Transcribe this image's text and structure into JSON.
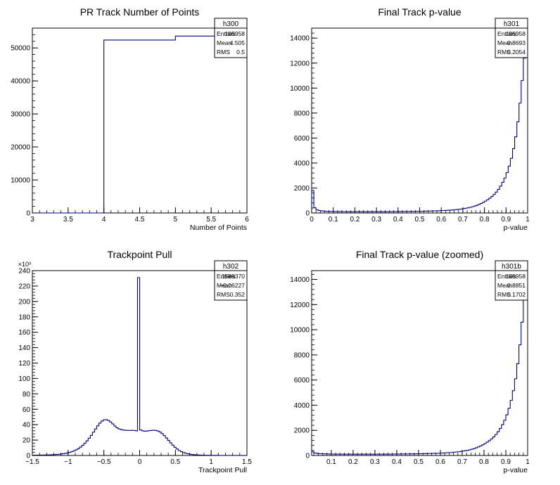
{
  "colors": {
    "hist_line": "#00008b",
    "axis": "#000000",
    "background": "#ffffff"
  },
  "chart_data": [
    {
      "id": "h300",
      "type": "histogram",
      "title": "PR Track Number of Points",
      "xlabel": "Number of Points",
      "ylabel": "",
      "xlim": [
        3,
        6
      ],
      "ylim": [
        0,
        56000
      ],
      "x_ticks": [
        3,
        3.5,
        4,
        4.5,
        5,
        5.5,
        6
      ],
      "x_tick_labels": [
        "3",
        "3.5",
        "4",
        "4.5",
        "5",
        "5.5",
        "6"
      ],
      "y_ticks": [
        0,
        10000,
        20000,
        30000,
        40000,
        50000
      ],
      "y_tick_labels": [
        "0",
        "10000",
        "20000",
        "30000",
        "40000",
        "50000"
      ],
      "y_exponent": "",
      "bin_edges": [
        3,
        4,
        5,
        6
      ],
      "values": [
        0,
        52400,
        53600
      ],
      "stats": {
        "name": "h300",
        "rows": [
          [
            "Entries",
            "105958"
          ],
          [
            "Mean",
            "4.505"
          ],
          [
            "RMS",
            "0.5"
          ]
        ]
      }
    },
    {
      "id": "h301",
      "type": "histogram",
      "title": "Final Track p-value",
      "xlabel": "p-value",
      "ylabel": "",
      "xlim": [
        0,
        1
      ],
      "ylim": [
        0,
        14800
      ],
      "x_ticks": [
        0,
        0.1,
        0.2,
        0.3,
        0.4,
        0.5,
        0.6,
        0.7,
        0.8,
        0.9,
        1
      ],
      "x_tick_labels": [
        "0",
        "0.1",
        "0.2",
        "0.3",
        "0.4",
        "0.5",
        "0.6",
        "0.7",
        "0.8",
        "0.9",
        "1"
      ],
      "y_ticks": [
        0,
        2000,
        4000,
        6000,
        8000,
        10000,
        12000,
        14000
      ],
      "y_tick_labels": [
        "0",
        "2000",
        "4000",
        "6000",
        "8000",
        "10000",
        "12000",
        "14000"
      ],
      "y_exponent": "",
      "x_start": 0,
      "bin_width": 0.01,
      "values": [
        1800,
        420,
        260,
        200,
        170,
        150,
        140,
        130,
        125,
        120,
        115,
        112,
        110,
        108,
        106,
        105,
        104,
        103,
        102,
        101,
        100,
        100,
        100,
        100,
        100,
        100,
        100,
        100,
        100,
        100,
        100,
        100,
        100,
        102,
        104,
        106,
        108,
        110,
        112,
        114,
        116,
        118,
        120,
        122,
        124,
        126,
        128,
        130,
        132,
        134,
        136,
        140,
        145,
        150,
        155,
        160,
        165,
        170,
        175,
        180,
        190,
        200,
        210,
        220,
        230,
        245,
        260,
        280,
        300,
        320,
        350,
        380,
        410,
        450,
        500,
        550,
        610,
        680,
        760,
        850,
        950,
        1060,
        1180,
        1320,
        1480,
        1670,
        1890,
        2150,
        2450,
        2800,
        3230,
        3750,
        4380,
        5150,
        6100,
        7300,
        8800,
        10600,
        12400,
        14200
      ],
      "stats": {
        "name": "h301",
        "rows": [
          [
            "Entries",
            "105958"
          ],
          [
            "Mean",
            "0.8693"
          ],
          [
            "RMS",
            "0.2054"
          ]
        ]
      }
    },
    {
      "id": "h302",
      "type": "histogram",
      "title": "Trackpoint Pull",
      "xlabel": "Trackpoint Pull",
      "ylabel": "",
      "xlim": [
        -1.5,
        1.5
      ],
      "ylim": [
        0,
        240
      ],
      "x_ticks": [
        -1.5,
        -1,
        -0.5,
        0,
        0.5,
        1,
        1.5
      ],
      "x_tick_labels": [
        "−1.5",
        "−1",
        "−0.5",
        "0",
        "0.5",
        "1",
        "1.5"
      ],
      "y_ticks": [
        0,
        20,
        40,
        60,
        80,
        100,
        120,
        140,
        160,
        180,
        200,
        220,
        240
      ],
      "y_tick_labels": [
        "0",
        "20",
        "40",
        "60",
        "80",
        "100",
        "120",
        "140",
        "160",
        "180",
        "200",
        "220",
        "240"
      ],
      "y_exponent": "×10³",
      "x_start": -1.5,
      "bin_width": 0.03,
      "values": [
        0.3,
        0.4,
        0.4,
        0.5,
        0.5,
        0.6,
        0.7,
        0.8,
        0.9,
        1.0,
        1.2,
        1.4,
        1.6,
        1.9,
        2.3,
        2.8,
        3.4,
        4.1,
        5.0,
        6.1,
        7.4,
        9.0,
        10.9,
        13.2,
        15.9,
        19.0,
        22.4,
        26.2,
        30.3,
        34.5,
        38.5,
        42.0,
        44.7,
        46.3,
        46.5,
        45.5,
        43.5,
        41.0,
        38.3,
        36.0,
        34.5,
        33.6,
        33.0,
        32.7,
        32.6,
        32.6,
        32.7,
        32.5,
        32.0,
        231.0,
        33.0,
        32.0,
        31.5,
        31.8,
        32.2,
        32.6,
        32.8,
        32.6,
        31.9,
        30.5,
        28.5,
        25.8,
        22.8,
        19.6,
        16.4,
        13.4,
        10.7,
        8.4,
        6.5,
        5.0,
        3.8,
        2.9,
        2.2,
        1.7,
        1.3,
        1.0,
        0.8,
        0.6,
        0.5,
        0.4,
        0.35,
        0.3,
        0.25,
        0.2,
        0.2,
        0.15,
        0.15,
        0.1,
        0.1,
        0.1,
        0.1,
        0.1,
        0.1,
        0.1,
        0.1,
        0.1,
        0.1,
        0.1,
        0.1,
        0.1
      ],
      "stats": {
        "name": "h302",
        "rows": [
          [
            "Entries",
            "1589370"
          ],
          [
            "Mean",
            "−0.06227"
          ],
          [
            "RMS",
            "0.352"
          ]
        ]
      }
    },
    {
      "id": "h301b",
      "type": "histogram",
      "title": "Final Track p-value (zoomed)",
      "xlabel": "p-value",
      "ylabel": "",
      "xlim": [
        0.01,
        1
      ],
      "ylim": [
        0,
        14700
      ],
      "x_ticks": [
        0.1,
        0.2,
        0.3,
        0.4,
        0.5,
        0.6,
        0.7,
        0.8,
        0.9,
        1
      ],
      "x_tick_labels": [
        "0.1",
        "0.2",
        "0.3",
        "0.4",
        "0.5",
        "0.6",
        "0.7",
        "0.8",
        "0.9",
        "1"
      ],
      "y_ticks": [
        0,
        2000,
        4000,
        6000,
        8000,
        10000,
        12000,
        14000
      ],
      "y_tick_labels": [
        "0",
        "2000",
        "4000",
        "6000",
        "8000",
        "10000",
        "12000",
        "14000"
      ],
      "y_exponent": "",
      "x_start": 0.01,
      "bin_width": 0.01,
      "values": [
        300,
        200,
        170,
        150,
        140,
        130,
        125,
        120,
        115,
        112,
        110,
        108,
        106,
        105,
        104,
        103,
        102,
        101,
        100,
        100,
        100,
        100,
        100,
        100,
        100,
        100,
        100,
        100,
        100,
        100,
        100,
        100,
        102,
        104,
        106,
        108,
        110,
        112,
        114,
        116,
        118,
        120,
        122,
        124,
        126,
        128,
        130,
        132,
        134,
        136,
        140,
        145,
        150,
        155,
        160,
        165,
        170,
        175,
        180,
        190,
        200,
        210,
        220,
        230,
        245,
        260,
        280,
        300,
        320,
        350,
        380,
        410,
        450,
        500,
        550,
        610,
        680,
        760,
        850,
        950,
        1060,
        1180,
        1320,
        1480,
        1670,
        1890,
        2150,
        2450,
        2800,
        3230,
        3750,
        4380,
        5150,
        6100,
        7300,
        8800,
        10600,
        12400,
        14200
      ],
      "stats": {
        "name": "h301b",
        "rows": [
          [
            "Entries",
            "105958"
          ],
          [
            "Mean",
            "0.8851"
          ],
          [
            "RMS",
            "0.1702"
          ]
        ]
      }
    }
  ]
}
